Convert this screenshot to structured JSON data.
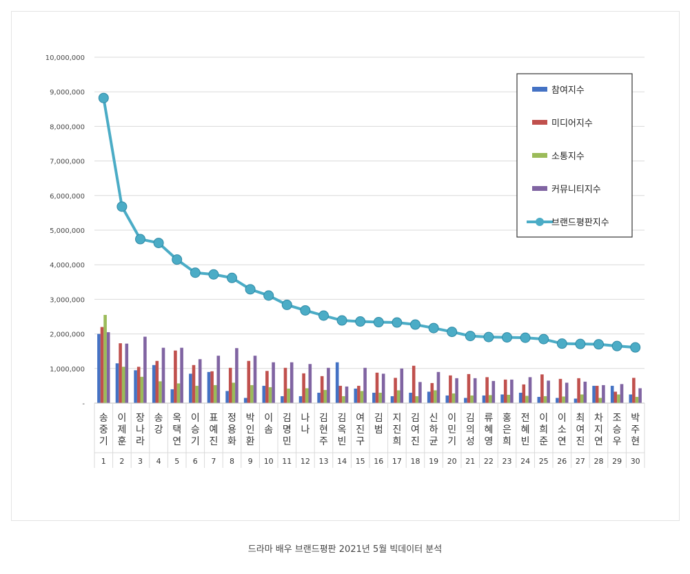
{
  "caption": "드라마 배우 브랜드평판  2021년 5월 빅데이터 분석",
  "chart_data": {
    "type": "bar",
    "y_ticks": [
      "-",
      "1,000,000",
      "2,000,000",
      "3,000,000",
      "4,000,000",
      "5,000,000",
      "6,000,000",
      "7,000,000",
      "8,000,000",
      "9,000,000",
      "10,000,000"
    ],
    "ylim": [
      0,
      10000000
    ],
    "grid": true,
    "legend_position": "top-right",
    "ranks": [
      "1",
      "2",
      "3",
      "4",
      "5",
      "6",
      "7",
      "8",
      "9",
      "10",
      "11",
      "12",
      "13",
      "14",
      "15",
      "16",
      "17",
      "18",
      "19",
      "20",
      "21",
      "22",
      "23",
      "24",
      "25",
      "26",
      "27",
      "28",
      "29",
      "30"
    ],
    "categories": [
      "송중기",
      "이제훈",
      "장나라",
      "송강",
      "옥택연",
      "이승기",
      "표예진",
      "정용화",
      "박인환",
      "이솜",
      "김명민",
      "나나",
      "김현주",
      "김옥빈",
      "여진구",
      "김범",
      "지진희",
      "김여진",
      "신하균",
      "이민기",
      "김의성",
      "류혜영",
      "홍은희",
      "전혜빈",
      "이희준",
      "이소연",
      "최여진",
      "차지연",
      "조승우",
      "박주현"
    ],
    "series": [
      {
        "name": "참여지수",
        "type": "bar",
        "color": "#4472c4",
        "values": [
          2000000,
          1150000,
          950000,
          1100000,
          400000,
          850000,
          900000,
          350000,
          150000,
          500000,
          200000,
          200000,
          300000,
          1180000,
          420000,
          300000,
          200000,
          300000,
          330000,
          220000,
          150000,
          220000,
          250000,
          300000,
          180000,
          150000,
          130000,
          500000,
          500000,
          250000
        ]
      },
      {
        "name": "미디어지수",
        "type": "bar",
        "color": "#c0504d",
        "values": [
          2200000,
          1730000,
          1050000,
          1220000,
          1520000,
          1100000,
          920000,
          1020000,
          1220000,
          930000,
          1020000,
          860000,
          780000,
          500000,
          500000,
          880000,
          730000,
          1080000,
          580000,
          800000,
          840000,
          750000,
          680000,
          540000,
          830000,
          700000,
          720000,
          500000,
          330000,
          730000
        ]
      },
      {
        "name": "소통지수",
        "type": "bar",
        "color": "#9bbb59",
        "values": [
          2550000,
          1050000,
          760000,
          630000,
          570000,
          500000,
          520000,
          590000,
          520000,
          460000,
          420000,
          430000,
          380000,
          200000,
          350000,
          300000,
          370000,
          200000,
          370000,
          280000,
          220000,
          230000,
          240000,
          210000,
          200000,
          190000,
          250000,
          150000,
          250000,
          180000
        ]
      },
      {
        "name": "커뮤니티지수",
        "type": "bar",
        "color": "#8064a2",
        "values": [
          2050000,
          1720000,
          1920000,
          1600000,
          1600000,
          1270000,
          1370000,
          1590000,
          1370000,
          1180000,
          1180000,
          1130000,
          1020000,
          480000,
          1020000,
          850000,
          1000000,
          610000,
          900000,
          720000,
          720000,
          640000,
          680000,
          750000,
          650000,
          590000,
          620000,
          520000,
          550000,
          430000
        ]
      },
      {
        "name": "브랜드평판지수",
        "type": "line",
        "color": "#4bacc6",
        "values": [
          8820000,
          5680000,
          4740000,
          4630000,
          4150000,
          3770000,
          3720000,
          3620000,
          3290000,
          3110000,
          2840000,
          2680000,
          2530000,
          2390000,
          2360000,
          2340000,
          2330000,
          2270000,
          2170000,
          2060000,
          1940000,
          1910000,
          1900000,
          1890000,
          1850000,
          1720000,
          1710000,
          1700000,
          1650000,
          1610000
        ]
      }
    ]
  }
}
